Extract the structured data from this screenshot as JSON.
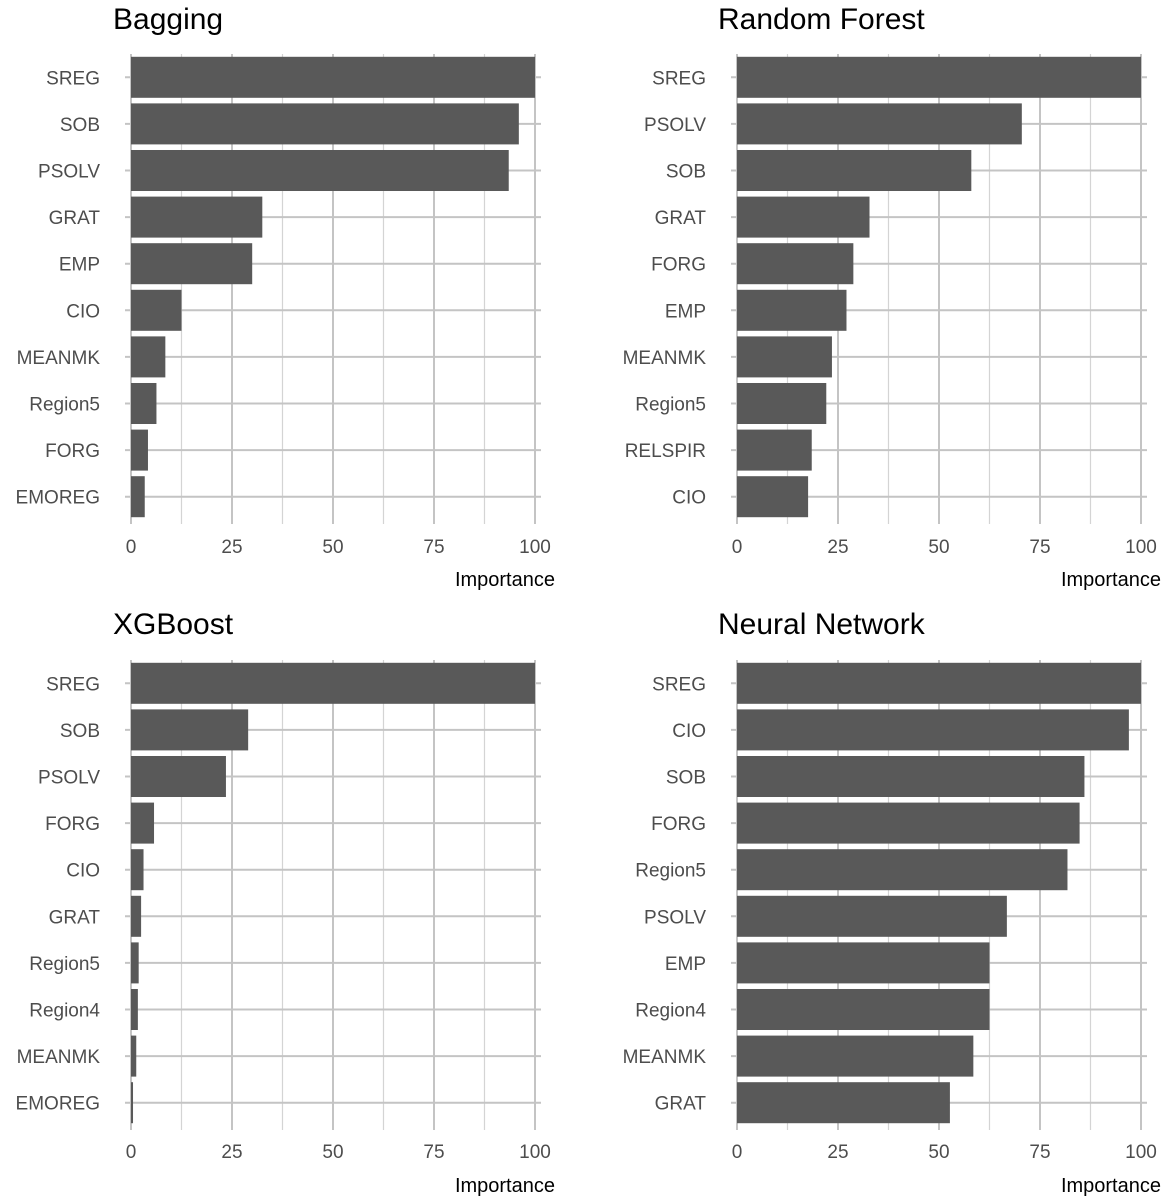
{
  "colors": {
    "bar": "#595959",
    "grid": "#c4c4c4",
    "text": "#4d4d4d"
  },
  "chart_data": [
    {
      "type": "bar",
      "orientation": "horizontal",
      "title": "Bagging",
      "xlabel": "Importance",
      "xlim": [
        0,
        100
      ],
      "xticks": [
        0,
        25,
        50,
        75,
        100
      ],
      "grid": true,
      "categories": [
        "SREG",
        "SOB",
        "PSOLV",
        "GRAT",
        "EMP",
        "CIO",
        "MEANMK",
        "Region5",
        "FORG",
        "EMOREG"
      ],
      "values": [
        100,
        96,
        93.5,
        32.5,
        30,
        12.5,
        8.5,
        6.3,
        4.2,
        3.4
      ]
    },
    {
      "type": "bar",
      "orientation": "horizontal",
      "title": "Random Forest",
      "xlabel": "Importance",
      "xlim": [
        0,
        100
      ],
      "xticks": [
        0,
        25,
        50,
        75,
        100
      ],
      "grid": true,
      "categories": [
        "SREG",
        "PSOLV",
        "SOB",
        "GRAT",
        "FORG",
        "EMP",
        "MEANMK",
        "Region5",
        "RELSPIR",
        "CIO"
      ],
      "values": [
        100,
        70.5,
        58,
        32.8,
        28.8,
        27.1,
        23.5,
        22.1,
        18.5,
        17.6
      ]
    },
    {
      "type": "bar",
      "orientation": "horizontal",
      "title": "XGBoost",
      "xlabel": "Importance",
      "xlim": [
        0,
        100
      ],
      "xticks": [
        0,
        25,
        50,
        75,
        100
      ],
      "grid": true,
      "categories": [
        "SREG",
        "SOB",
        "PSOLV",
        "FORG",
        "CIO",
        "GRAT",
        "Region5",
        "Region4",
        "MEANMK",
        "EMOREG"
      ],
      "values": [
        100,
        29,
        23.5,
        5.7,
        3.1,
        2.5,
        1.9,
        1.7,
        1.3,
        0.5
      ]
    },
    {
      "type": "bar",
      "orientation": "horizontal",
      "title": "Neural Network",
      "xlabel": "Importance",
      "xlim": [
        0,
        100
      ],
      "xticks": [
        0,
        25,
        50,
        75,
        100
      ],
      "grid": true,
      "categories": [
        "SREG",
        "CIO",
        "SOB",
        "FORG",
        "Region5",
        "PSOLV",
        "EMP",
        "Region4",
        "MEANMK",
        "GRAT"
      ],
      "values": [
        100,
        97,
        86,
        84.8,
        81.8,
        66.8,
        62.5,
        62.5,
        58.5,
        52.7
      ]
    }
  ]
}
